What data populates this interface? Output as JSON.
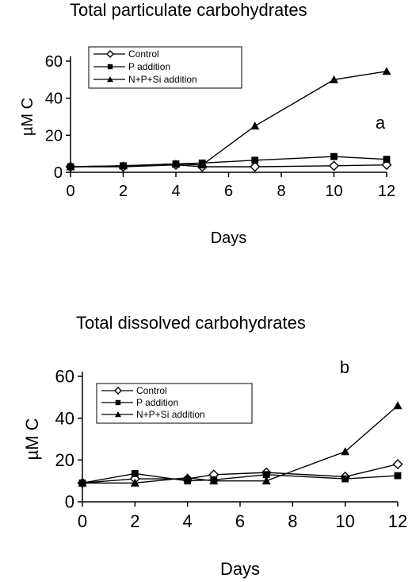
{
  "chart_data": [
    {
      "type": "line",
      "title": "Total particulate carbohydrates",
      "panel_label": "a",
      "xlabel": "Days",
      "ylabel": "µM C",
      "xlim": [
        0,
        12
      ],
      "ylim": [
        0,
        60
      ],
      "xticks": [
        0,
        2,
        4,
        6,
        8,
        10,
        12
      ],
      "yticks": [
        0,
        20,
        40,
        60
      ],
      "grid": false,
      "legend_position": "top-left",
      "series": [
        {
          "name": "Control",
          "marker": "diamond-open",
          "color": "#000000",
          "x": [
            0,
            2,
            4,
            5,
            7,
            10,
            12
          ],
          "y": [
            3,
            3,
            4,
            3,
            3,
            3.5,
            4
          ]
        },
        {
          "name": "P addition",
          "marker": "square-filled",
          "color": "#000000",
          "x": [
            0,
            2,
            4,
            5,
            7,
            10,
            12
          ],
          "y": [
            3,
            3.5,
            4.5,
            5,
            6.5,
            8.5,
            7
          ]
        },
        {
          "name": "N+P+Si addition",
          "marker": "triangle-filled",
          "color": "#000000",
          "x": [
            0,
            2,
            4,
            5,
            7,
            10,
            12
          ],
          "y": [
            3,
            3.5,
            4.5,
            4,
            25,
            50,
            54.5
          ]
        }
      ]
    },
    {
      "type": "line",
      "title": "Total dissolved carbohydrates",
      "panel_label": "b",
      "xlabel": "Days",
      "ylabel": "µM C",
      "xlim": [
        0,
        12
      ],
      "ylim": [
        0,
        60
      ],
      "xticks": [
        0,
        2,
        4,
        6,
        8,
        10,
        12
      ],
      "yticks": [
        0,
        20,
        40,
        60
      ],
      "grid": false,
      "legend_position": "top-left",
      "series": [
        {
          "name": "Control",
          "marker": "diamond-open",
          "color": "#000000",
          "x": [
            0,
            2,
            4,
            5,
            7,
            10,
            12
          ],
          "y": [
            9,
            11,
            11,
            13,
            14,
            12,
            18
          ]
        },
        {
          "name": "P addition",
          "marker": "square-filled",
          "color": "#000000",
          "x": [
            0,
            2,
            4,
            5,
            7,
            10,
            12
          ],
          "y": [
            9,
            13.5,
            10,
            10.5,
            13,
            11,
            12.5
          ]
        },
        {
          "name": "N+P+Si addition",
          "marker": "triangle-filled",
          "color": "#000000",
          "x": [
            0,
            2,
            4,
            5,
            7,
            10,
            12
          ],
          "y": [
            9,
            9,
            11.5,
            10,
            10,
            24,
            46
          ]
        }
      ]
    }
  ]
}
